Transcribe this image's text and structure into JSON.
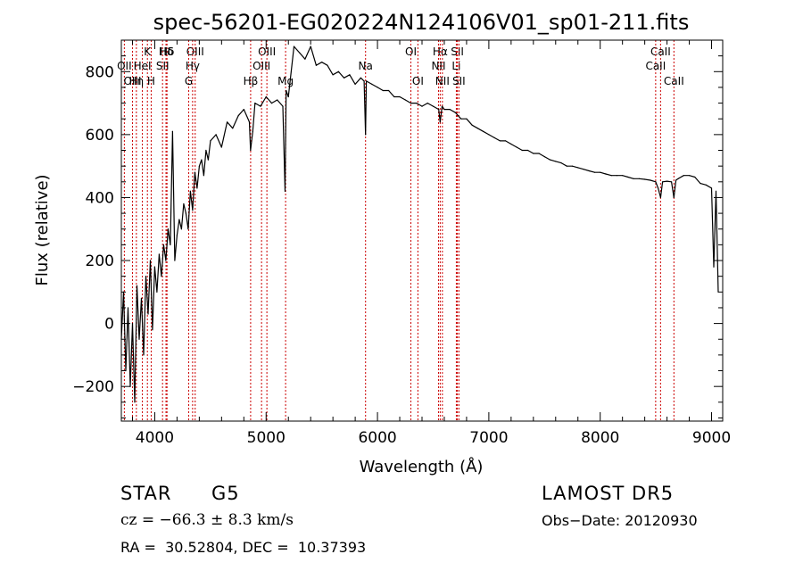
{
  "chart_data": {
    "type": "line",
    "title": "spec-56201-EG020224N124106V01_sp01-211.fits",
    "xlabel": "Wavelength (Å)",
    "ylabel": "Flux (relative)",
    "xlim": [
      3700,
      9100
    ],
    "ylim": [
      -310,
      900
    ],
    "x_ticks": [
      4000,
      5000,
      6000,
      7000,
      8000,
      9000
    ],
    "y_ticks": [
      -200,
      0,
      200,
      400,
      600,
      800
    ],
    "grid": false,
    "series": [
      {
        "color": "#000000",
        "x": [
          3700,
          3720,
          3740,
          3760,
          3780,
          3800,
          3820,
          3840,
          3860,
          3880,
          3900,
          3920,
          3940,
          3960,
          3980,
          4000,
          4020,
          4040,
          4060,
          4080,
          4100,
          4120,
          4140,
          4160,
          4180,
          4200,
          4220,
          4240,
          4260,
          4280,
          4300,
          4320,
          4340,
          4360,
          4380,
          4400,
          4420,
          4440,
          4460,
          4480,
          4500,
          4550,
          4600,
          4650,
          4700,
          4750,
          4800,
          4850,
          4860,
          4880,
          4900,
          4950,
          5000,
          5050,
          5100,
          5150,
          5170,
          5180,
          5200,
          5250,
          5300,
          5350,
          5400,
          5450,
          5500,
          5550,
          5600,
          5650,
          5700,
          5750,
          5800,
          5850,
          5880,
          5893,
          5900,
          5950,
          6000,
          6050,
          6100,
          6150,
          6200,
          6250,
          6300,
          6350,
          6400,
          6450,
          6500,
          6550,
          6563,
          6580,
          6600,
          6650,
          6700,
          6750,
          6800,
          6850,
          6900,
          6950,
          7000,
          7050,
          7100,
          7150,
          7200,
          7250,
          7300,
          7350,
          7400,
          7450,
          7500,
          7550,
          7600,
          7650,
          7700,
          7750,
          7800,
          7850,
          7900,
          7950,
          8000,
          8050,
          8100,
          8150,
          8200,
          8250,
          8300,
          8350,
          8400,
          8450,
          8498,
          8520,
          8542,
          8560,
          8600,
          8640,
          8662,
          8680,
          8700,
          8750,
          8800,
          8850,
          8900,
          8950,
          9000,
          9020,
          9040,
          9060
        ],
        "y": [
          -50,
          100,
          -150,
          50,
          -200,
          0,
          -250,
          120,
          -50,
          80,
          -100,
          150,
          30,
          200,
          -20,
          180,
          100,
          220,
          150,
          250,
          200,
          300,
          250,
          610,
          200,
          280,
          330,
          300,
          380,
          350,
          300,
          420,
          360,
          480,
          430,
          500,
          520,
          470,
          550,
          520,
          580,
          600,
          560,
          640,
          620,
          660,
          680,
          640,
          550,
          610,
          700,
          690,
          720,
          700,
          710,
          690,
          420,
          740,
          720,
          880,
          860,
          840,
          880,
          820,
          830,
          820,
          790,
          800,
          780,
          790,
          760,
          780,
          770,
          600,
          770,
          760,
          750,
          740,
          740,
          720,
          720,
          710,
          700,
          700,
          690,
          700,
          690,
          680,
          640,
          690,
          680,
          680,
          670,
          650,
          650,
          630,
          620,
          610,
          600,
          590,
          580,
          580,
          570,
          560,
          550,
          550,
          540,
          540,
          530,
          520,
          515,
          510,
          500,
          500,
          495,
          490,
          485,
          480,
          480,
          475,
          470,
          470,
          470,
          465,
          460,
          460,
          458,
          455,
          450,
          430,
          400,
          450,
          452,
          450,
          400,
          455,
          460,
          470,
          470,
          465,
          445,
          440,
          430,
          180,
          420,
          100
        ]
      }
    ],
    "line_marks": [
      {
        "label": "Hδ",
        "wl": 4101,
        "row": 1
      },
      {
        "label": "K",
        "wl": 3934,
        "row": 1
      },
      {
        "label": "Hδ",
        "wl": 4110,
        "row": 1
      },
      {
        "label": "OIII",
        "wl": 4363,
        "row": 1
      },
      {
        "label": "OIII",
        "wl": 5007,
        "row": 1
      },
      {
        "label": "OI",
        "wl": 6300,
        "row": 1
      },
      {
        "label": "Hα",
        "wl": 6563,
        "row": 1
      },
      {
        "label": "SII",
        "wl": 6717,
        "row": 1
      },
      {
        "label": "CaII",
        "wl": 8542,
        "row": 1
      },
      {
        "label": "OII",
        "wl": 3727,
        "row": 2
      },
      {
        "label": "HeI",
        "wl": 3889,
        "row": 2
      },
      {
        "label": "SII",
        "wl": 4070,
        "row": 2
      },
      {
        "label": "Hγ",
        "wl": 4340,
        "row": 2
      },
      {
        "label": "OIII",
        "wl": 4959,
        "row": 2
      },
      {
        "label": "Na",
        "wl": 5893,
        "row": 2
      },
      {
        "label": "NII",
        "wl": 6548,
        "row": 2
      },
      {
        "label": "Li",
        "wl": 6708,
        "row": 2
      },
      {
        "label": "CaII",
        "wl": 8498,
        "row": 2
      },
      {
        "label": "OIII",
        "wl": 3800,
        "row": 3
      },
      {
        "label": "Hη",
        "wl": 3835,
        "row": 3
      },
      {
        "label": "H",
        "wl": 3968,
        "row": 3
      },
      {
        "label": "G",
        "wl": 4305,
        "row": 3
      },
      {
        "label": "Hβ",
        "wl": 4861,
        "row": 3
      },
      {
        "label": "Mg",
        "wl": 5175,
        "row": 3
      },
      {
        "label": "OI",
        "wl": 6363,
        "row": 3
      },
      {
        "label": "NII",
        "wl": 6583,
        "row": 3
      },
      {
        "label": "SII",
        "wl": 6731,
        "row": 3
      },
      {
        "label": "CaII",
        "wl": 8662,
        "row": 3
      }
    ],
    "line_color": "#cc0000"
  },
  "info": {
    "object_class": "STAR",
    "subclass": "G5",
    "release": "LAMOST DR5",
    "cz": "cz = −66.3 ± 8.3 km/s",
    "obs_date": "Obs−Date: 20120930",
    "coords": "RA =  30.52804, DEC =  10.37393"
  }
}
